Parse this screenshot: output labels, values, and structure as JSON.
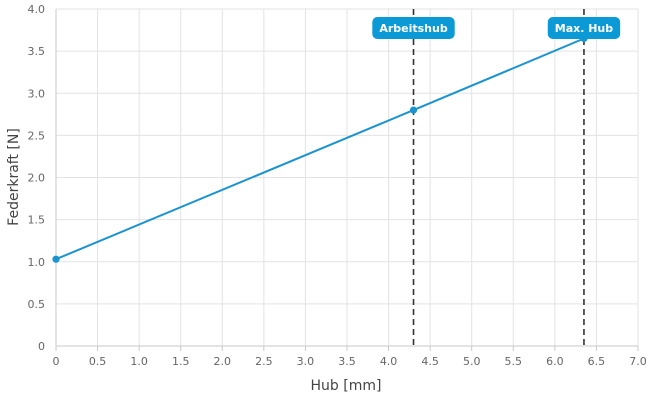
{
  "chart_data": {
    "type": "line",
    "title": "",
    "xlabel": "Hub [mm]",
    "ylabel": "Federkraft [N]",
    "xlim": [
      0,
      7.0
    ],
    "ylim": [
      0,
      4.0
    ],
    "x_ticks": [
      "0",
      "0.5",
      "1.0",
      "1.5",
      "2.0",
      "2.5",
      "3.0",
      "3.5",
      "4.0",
      "4.5",
      "5.0",
      "5.5",
      "6.0",
      "6.5",
      "7.0"
    ],
    "y_ticks": [
      "0",
      "0.5",
      "1.0",
      "1.5",
      "2.0",
      "2.5",
      "3.0",
      "3.5",
      "4.0"
    ],
    "grid": true,
    "series": [
      {
        "color": "#1a93d0",
        "points": [
          {
            "x": 0,
            "y": 1.03
          },
          {
            "x": 4.3,
            "y": 2.8
          },
          {
            "x": 6.35,
            "y": 3.65
          }
        ]
      }
    ],
    "reference_lines": [
      {
        "x": 4.3,
        "label": "Arbeitshub"
      },
      {
        "x": 6.35,
        "label": "Max. Hub"
      }
    ],
    "label_color": "#0b9ad6"
  }
}
